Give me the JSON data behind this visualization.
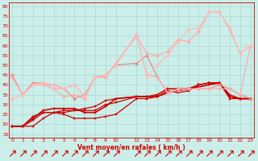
{
  "xlabel": "Vent moyen/en rafales ( km/h )",
  "bg_color": "#cceee8",
  "grid_color": "#aadddd",
  "text_color": "#cc0000",
  "xlim": [
    -0.3,
    23.3
  ],
  "ylim": [
    13,
    82
  ],
  "yticks": [
    15,
    20,
    25,
    30,
    35,
    40,
    45,
    50,
    55,
    60,
    65,
    70,
    75,
    80
  ],
  "xticks": [
    0,
    1,
    2,
    3,
    4,
    5,
    6,
    7,
    8,
    9,
    10,
    12,
    13,
    14,
    15,
    16,
    17,
    18,
    19,
    20,
    21,
    22,
    23
  ],
  "lines": [
    {
      "x": [
        0,
        1,
        2,
        3,
        4,
        5,
        6,
        7,
        8,
        9,
        10,
        12,
        13,
        14,
        15,
        16,
        17,
        18,
        19,
        20,
        21,
        22,
        23
      ],
      "y": [
        19,
        19,
        19,
        23,
        26,
        25,
        23,
        23,
        23,
        24,
        25,
        33,
        33,
        34,
        36,
        37,
        38,
        40,
        41,
        41,
        33,
        33,
        33
      ],
      "color": "#cc0000",
      "lw": 0.9,
      "marker": "s",
      "ms": 2.0
    },
    {
      "x": [
        0,
        1,
        2,
        3,
        4,
        5,
        6,
        7,
        8,
        9,
        10,
        12,
        13,
        14,
        15,
        16,
        17,
        18,
        19,
        20,
        21,
        22,
        23
      ],
      "y": [
        19,
        19,
        22,
        26,
        26,
        27,
        27,
        27,
        27,
        30,
        31,
        34,
        34,
        34,
        37,
        36,
        37,
        40,
        41,
        41,
        35,
        33,
        33
      ],
      "color": "#cc0000",
      "lw": 0.9,
      "marker": "s",
      "ms": 2.0
    },
    {
      "x": [
        0,
        1,
        2,
        3,
        4,
        5,
        6,
        7,
        8,
        9,
        10,
        12,
        13,
        14,
        15,
        16,
        17,
        18,
        19,
        20,
        21,
        22,
        23
      ],
      "y": [
        19,
        19,
        23,
        27,
        28,
        28,
        28,
        26,
        26,
        29,
        33,
        34,
        34,
        35,
        38,
        38,
        38,
        39,
        40,
        41,
        34,
        33,
        33
      ],
      "color": "#cc0000",
      "lw": 1.2,
      "marker": "s",
      "ms": 2.0
    },
    {
      "x": [
        0,
        1,
        2,
        3,
        4,
        5,
        6,
        7,
        8,
        9,
        10,
        12,
        13,
        14,
        15,
        16,
        17,
        18,
        19,
        20,
        21,
        22,
        23
      ],
      "y": [
        19,
        19,
        24,
        26,
        26,
        26,
        27,
        28,
        29,
        32,
        33,
        34,
        34,
        34,
        36,
        37,
        38,
        40,
        41,
        41,
        34,
        33,
        33
      ],
      "color": "#cc0000",
      "lw": 0.9,
      "marker": "s",
      "ms": 1.5
    },
    {
      "x": [
        0,
        1,
        2,
        3,
        4,
        5,
        6,
        7,
        8,
        9,
        10,
        12,
        13,
        14,
        15,
        16,
        17,
        18,
        19,
        20,
        21,
        22,
        23
      ],
      "y": [
        45,
        35,
        41,
        41,
        38,
        38,
        33,
        35,
        44,
        45,
        50,
        51,
        55,
        44,
        36,
        37,
        38,
        38,
        38,
        40,
        38,
        35,
        33
      ],
      "color": "#ee8888",
      "lw": 0.9,
      "marker": "D",
      "ms": 2.0
    },
    {
      "x": [
        0,
        1,
        2,
        3,
        4,
        5,
        6,
        7,
        8,
        9,
        10,
        12,
        13,
        14,
        15,
        16,
        17,
        18,
        19,
        20,
        21,
        22,
        23
      ],
      "y": [
        44,
        35,
        40,
        40,
        38,
        34,
        35,
        33,
        44,
        44,
        51,
        65,
        45,
        44,
        36,
        38,
        38,
        38,
        38,
        38,
        38,
        35,
        60
      ],
      "color": "#ffaaaa",
      "lw": 0.9,
      "marker": "D",
      "ms": 2.0
    },
    {
      "x": [
        0,
        1,
        2,
        3,
        4,
        5,
        6,
        7,
        8,
        9,
        10,
        12,
        13,
        14,
        15,
        16,
        17,
        18,
        19,
        20,
        21,
        22,
        23
      ],
      "y": [
        44,
        35,
        40,
        41,
        40,
        38,
        40,
        34,
        44,
        44,
        51,
        65,
        56,
        55,
        57,
        63,
        62,
        67,
        77,
        77,
        68,
        56,
        60
      ],
      "color": "#ffaaaa",
      "lw": 0.9,
      "marker": "D",
      "ms": 2.0
    },
    {
      "x": [
        0,
        1,
        2,
        3,
        4,
        5,
        6,
        7,
        8,
        9,
        10,
        12,
        13,
        14,
        15,
        16,
        17,
        18,
        19,
        20,
        21,
        22,
        23
      ],
      "y": [
        33,
        35,
        40,
        41,
        38,
        38,
        40,
        34,
        44,
        45,
        50,
        66,
        44,
        50,
        55,
        62,
        68,
        69,
        77,
        77,
        69,
        56,
        60
      ],
      "color": "#ffbbbb",
      "lw": 0.9,
      "marker": "D",
      "ms": 2.0
    }
  ]
}
